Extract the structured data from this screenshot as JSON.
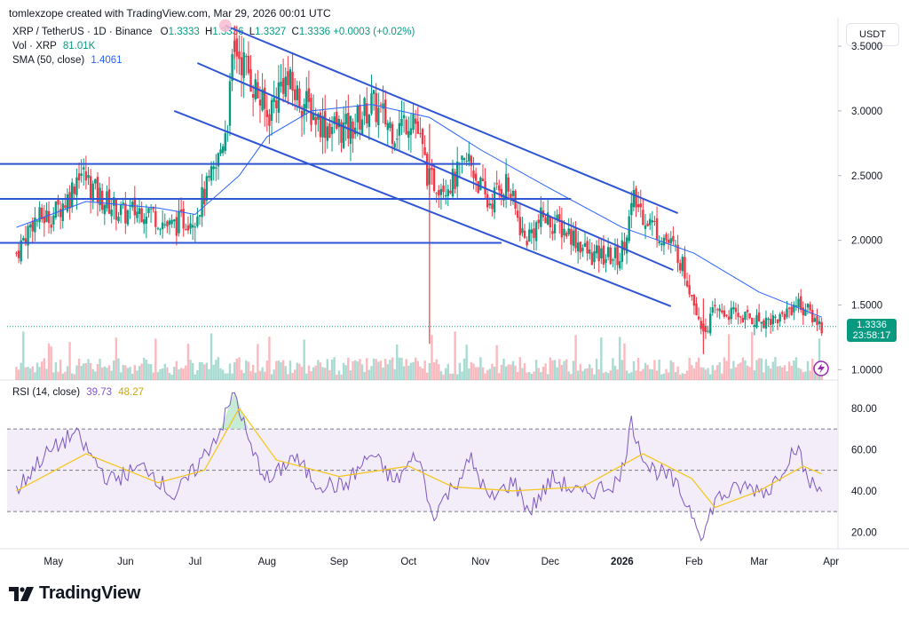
{
  "header": {
    "attribution": "tomlexzope created with TradingView.com, Mar 29, 2026 00:01 UTC"
  },
  "legend": {
    "symbol": "XRP / TetherUS · 1D · Binance",
    "o_label": "O",
    "o": "1.3333",
    "h_label": "H",
    "h": "1.3336",
    "l_label": "L",
    "l": "1.3327",
    "c_label": "C",
    "c": "1.3336",
    "change": "+0.0003 (+0.02%)",
    "vol_label": "Vol · XRP",
    "vol": "81.01K",
    "sma_label": "SMA (50, close)",
    "sma": "1.4061",
    "rsi_label": "RSI (14, close)",
    "rsi": "39.73",
    "rsi_ma": "48.27"
  },
  "price_axis": {
    "unit": "USDT",
    "last_price": "1.3336",
    "countdown": "23:58:17"
  },
  "footer": {
    "brand": "TradingView"
  },
  "colors": {
    "up": "#089981",
    "down": "#f23645",
    "sma": "#2962ff",
    "trendline": "#2f55d4",
    "rsi": "#7e57c2",
    "rsi_ma": "#f5c518",
    "band": "#ede7f6"
  },
  "chart_data": [
    {
      "type": "candlestick",
      "symbol": "XRP / TetherUS",
      "interval": "1D",
      "exchange": "Binance",
      "x_ticks": [
        "May",
        "Jun",
        "Jul",
        "Aug",
        "Sep",
        "Oct",
        "Nov",
        "Dec",
        "2026",
        "Feb",
        "Mar",
        "Apr"
      ],
      "y_ticks": [
        "3.5000",
        "3.0000",
        "2.5000",
        "2.0000",
        "1.5000",
        "1.0000"
      ],
      "ylim": [
        0.92,
        3.72
      ],
      "close_path": [
        {
          "date": "2025-04-15",
          "close": 1.9
        },
        {
          "date": "2025-04-22",
          "close": 2.15
        },
        {
          "date": "2025-05-01",
          "close": 2.2
        },
        {
          "date": "2025-05-08",
          "close": 2.35
        },
        {
          "date": "2025-05-12",
          "close": 2.55
        },
        {
          "date": "2025-05-20",
          "close": 2.35
        },
        {
          "date": "2025-05-31",
          "close": 2.2
        },
        {
          "date": "2025-06-10",
          "close": 2.25
        },
        {
          "date": "2025-06-20",
          "close": 2.1
        },
        {
          "date": "2025-07-01",
          "close": 2.2
        },
        {
          "date": "2025-07-10",
          "close": 2.55
        },
        {
          "date": "2025-07-15",
          "close": 2.95
        },
        {
          "date": "2025-07-18",
          "close": 3.5
        },
        {
          "date": "2025-07-24",
          "close": 3.3
        },
        {
          "date": "2025-08-01",
          "close": 2.95
        },
        {
          "date": "2025-08-08",
          "close": 3.25
        },
        {
          "date": "2025-08-15",
          "close": 3.1
        },
        {
          "date": "2025-08-25",
          "close": 2.9
        },
        {
          "date": "2025-09-05",
          "close": 2.85
        },
        {
          "date": "2025-09-15",
          "close": 3.05
        },
        {
          "date": "2025-09-25",
          "close": 2.85
        },
        {
          "date": "2025-10-03",
          "close": 2.98
        },
        {
          "date": "2025-10-10",
          "close": 2.45
        },
        {
          "date": "2025-10-20",
          "close": 2.45
        },
        {
          "date": "2025-10-27",
          "close": 2.62
        },
        {
          "date": "2025-11-04",
          "close": 2.28
        },
        {
          "date": "2025-11-12",
          "close": 2.45
        },
        {
          "date": "2025-11-20",
          "close": 2.0
        },
        {
          "date": "2025-11-28",
          "close": 2.18
        },
        {
          "date": "2025-12-10",
          "close": 2.05
        },
        {
          "date": "2025-12-18",
          "close": 1.88
        },
        {
          "date": "2025-12-31",
          "close": 1.87
        },
        {
          "date": "2026-01-06",
          "close": 2.3
        },
        {
          "date": "2026-01-15",
          "close": 2.1
        },
        {
          "date": "2026-01-25",
          "close": 1.9
        },
        {
          "date": "2026-01-31",
          "close": 1.6
        },
        {
          "date": "2026-02-05",
          "close": 1.3
        },
        {
          "date": "2026-02-10",
          "close": 1.45
        },
        {
          "date": "2026-02-20",
          "close": 1.42
        },
        {
          "date": "2026-03-01",
          "close": 1.38
        },
        {
          "date": "2026-03-10",
          "close": 1.4
        },
        {
          "date": "2026-03-17",
          "close": 1.52
        },
        {
          "date": "2026-03-22",
          "close": 1.45
        },
        {
          "date": "2026-03-28",
          "close": 1.3336
        }
      ],
      "sma_50_path": [
        {
          "date": "2025-04-15",
          "value": 2.1
        },
        {
          "date": "2025-05-15",
          "value": 2.3
        },
        {
          "date": "2025-06-15",
          "value": 2.25
        },
        {
          "date": "2025-07-01",
          "value": 2.2
        },
        {
          "date": "2025-07-20",
          "value": 2.5
        },
        {
          "date": "2025-08-01",
          "value": 2.8
        },
        {
          "date": "2025-08-20",
          "value": 3.0
        },
        {
          "date": "2025-09-15",
          "value": 3.05
        },
        {
          "date": "2025-10-10",
          "value": 2.95
        },
        {
          "date": "2025-11-01",
          "value": 2.7
        },
        {
          "date": "2025-12-01",
          "value": 2.4
        },
        {
          "date": "2026-01-01",
          "value": 2.1
        },
        {
          "date": "2026-02-01",
          "value": 1.9
        },
        {
          "date": "2026-03-01",
          "value": 1.6
        },
        {
          "date": "2026-03-28",
          "value": 1.4061
        }
      ],
      "trendlines": [
        {
          "kind": "channel-upper",
          "from": {
            "date": "2025-07-14",
            "price": 3.66
          },
          "to": {
            "date": "2026-01-25",
            "price": 2.21
          }
        },
        {
          "kind": "channel-mid",
          "from": {
            "date": "2025-07-02",
            "price": 3.37
          },
          "to": {
            "date": "2026-01-23",
            "price": 1.77
          }
        },
        {
          "kind": "channel-lower",
          "from": {
            "date": "2025-06-22",
            "price": 3.0
          },
          "to": {
            "date": "2026-01-22",
            "price": 1.49
          }
        },
        {
          "kind": "horizontal",
          "price": 2.59,
          "from": "2025-04-01",
          "to": "2025-11-01"
        },
        {
          "kind": "horizontal",
          "price": 2.32,
          "from": "2025-04-01",
          "to": "2025-12-10"
        },
        {
          "kind": "horizontal",
          "price": 1.98,
          "from": "2025-04-01",
          "to": "2025-11-10"
        }
      ]
    },
    {
      "type": "line",
      "title": "RSI (14, close)",
      "x_ticks": [
        "May",
        "Jun",
        "Jul",
        "Aug",
        "Sep",
        "Oct",
        "Nov",
        "Dec",
        "2026",
        "Feb",
        "Mar",
        "Apr"
      ],
      "y_ticks": [
        "80.00",
        "60.00",
        "40.00",
        "20.00"
      ],
      "ylim": [
        12,
        92
      ],
      "band": [
        30,
        70
      ],
      "midline": 50,
      "rsi_path": [
        {
          "date": "2025-04-15",
          "value": 40
        },
        {
          "date": "2025-04-25",
          "value": 55
        },
        {
          "date": "2025-05-10",
          "value": 68
        },
        {
          "date": "2025-05-25",
          "value": 45
        },
        {
          "date": "2025-06-10",
          "value": 52
        },
        {
          "date": "2025-06-22",
          "value": 37
        },
        {
          "date": "2025-07-02",
          "value": 52
        },
        {
          "date": "2025-07-12",
          "value": 70
        },
        {
          "date": "2025-07-18",
          "value": 88
        },
        {
          "date": "2025-07-25",
          "value": 60
        },
        {
          "date": "2025-08-02",
          "value": 44
        },
        {
          "date": "2025-08-12",
          "value": 57
        },
        {
          "date": "2025-08-22",
          "value": 44
        },
        {
          "date": "2025-09-03",
          "value": 42
        },
        {
          "date": "2025-09-15",
          "value": 58
        },
        {
          "date": "2025-09-25",
          "value": 44
        },
        {
          "date": "2025-10-05",
          "value": 58
        },
        {
          "date": "2025-10-11",
          "value": 28
        },
        {
          "date": "2025-10-20",
          "value": 42
        },
        {
          "date": "2025-10-28",
          "value": 55
        },
        {
          "date": "2025-11-05",
          "value": 35
        },
        {
          "date": "2025-11-15",
          "value": 45
        },
        {
          "date": "2025-11-22",
          "value": 30
        },
        {
          "date": "2025-12-02",
          "value": 46
        },
        {
          "date": "2025-12-15",
          "value": 38
        },
        {
          "date": "2025-12-31",
          "value": 45
        },
        {
          "date": "2026-01-05",
          "value": 73
        },
        {
          "date": "2026-01-12",
          "value": 52
        },
        {
          "date": "2026-01-22",
          "value": 46
        },
        {
          "date": "2026-01-31",
          "value": 30
        },
        {
          "date": "2026-02-05",
          "value": 18
        },
        {
          "date": "2026-02-10",
          "value": 36
        },
        {
          "date": "2026-02-22",
          "value": 42
        },
        {
          "date": "2026-03-05",
          "value": 40
        },
        {
          "date": "2026-03-17",
          "value": 62
        },
        {
          "date": "2026-03-22",
          "value": 45
        },
        {
          "date": "2026-03-28",
          "value": 39.73
        }
      ],
      "rsi_ma_path": [
        {
          "date": "2025-04-15",
          "value": 40
        },
        {
          "date": "2025-05-15",
          "value": 58
        },
        {
          "date": "2025-06-15",
          "value": 44
        },
        {
          "date": "2025-07-05",
          "value": 50
        },
        {
          "date": "2025-07-20",
          "value": 80
        },
        {
          "date": "2025-08-05",
          "value": 55
        },
        {
          "date": "2025-09-01",
          "value": 47
        },
        {
          "date": "2025-10-01",
          "value": 52
        },
        {
          "date": "2025-10-20",
          "value": 42
        },
        {
          "date": "2025-11-15",
          "value": 40
        },
        {
          "date": "2025-12-15",
          "value": 42
        },
        {
          "date": "2026-01-10",
          "value": 58
        },
        {
          "date": "2026-01-31",
          "value": 46
        },
        {
          "date": "2026-02-10",
          "value": 32
        },
        {
          "date": "2026-03-01",
          "value": 40
        },
        {
          "date": "2026-03-20",
          "value": 52
        },
        {
          "date": "2026-03-28",
          "value": 48.27
        }
      ]
    }
  ]
}
